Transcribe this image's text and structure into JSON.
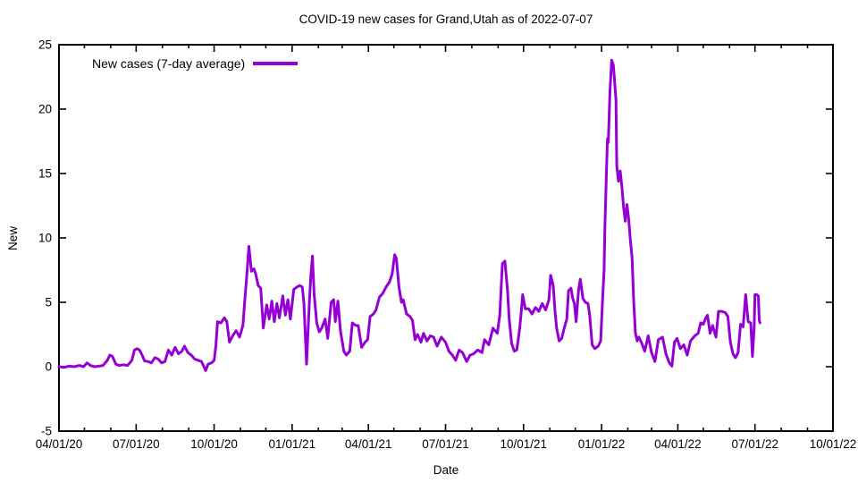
{
  "chart_data": {
    "type": "line",
    "title": "COVID-19 new cases for Grand,Utah as of 2022-07-07",
    "xlabel": "Date",
    "ylabel": "New",
    "ylim": [
      -5,
      25
    ],
    "x_range": [
      "2020-04-01",
      "2022-10-01"
    ],
    "grid": false,
    "legend_position": "top-left-inside",
    "y_ticks": [
      -5,
      0,
      5,
      10,
      15,
      20,
      25
    ],
    "x_major_ticks": [
      {
        "date": "2020-04-01",
        "label": "04/01/20"
      },
      {
        "date": "2020-07-01",
        "label": "07/01/20"
      },
      {
        "date": "2020-10-01",
        "label": "10/01/20"
      },
      {
        "date": "2021-01-01",
        "label": "01/01/21"
      },
      {
        "date": "2021-04-01",
        "label": "04/01/21"
      },
      {
        "date": "2021-07-01",
        "label": "07/01/21"
      },
      {
        "date": "2021-10-01",
        "label": "10/01/21"
      },
      {
        "date": "2022-01-01",
        "label": "01/01/22"
      },
      {
        "date": "2022-04-01",
        "label": "04/01/22"
      },
      {
        "date": "2022-07-01",
        "label": "07/01/22"
      },
      {
        "date": "2022-10-01",
        "label": "10/01/22"
      }
    ],
    "series": [
      {
        "name": "New cases (7-day average)",
        "color": "#9400d3",
        "points": [
          [
            "2020-04-01",
            0.0
          ],
          [
            "2020-04-07",
            -0.05
          ],
          [
            "2020-04-13",
            0.05
          ],
          [
            "2020-04-19",
            0.0
          ],
          [
            "2020-04-25",
            0.1
          ],
          [
            "2020-04-30",
            0.0
          ],
          [
            "2020-05-04",
            0.3
          ],
          [
            "2020-05-08",
            0.1
          ],
          [
            "2020-05-13",
            0.0
          ],
          [
            "2020-05-18",
            0.05
          ],
          [
            "2020-05-23",
            0.1
          ],
          [
            "2020-05-28",
            0.5
          ],
          [
            "2020-05-31",
            0.9
          ],
          [
            "2020-06-03",
            0.8
          ],
          [
            "2020-06-07",
            0.2
          ],
          [
            "2020-06-11",
            0.1
          ],
          [
            "2020-06-16",
            0.15
          ],
          [
            "2020-06-21",
            0.1
          ],
          [
            "2020-06-26",
            0.5
          ],
          [
            "2020-06-29",
            1.3
          ],
          [
            "2020-07-02",
            1.4
          ],
          [
            "2020-07-05",
            1.3
          ],
          [
            "2020-07-08",
            0.9
          ],
          [
            "2020-07-11",
            0.45
          ],
          [
            "2020-07-15",
            0.4
          ],
          [
            "2020-07-19",
            0.3
          ],
          [
            "2020-07-23",
            0.7
          ],
          [
            "2020-07-27",
            0.6
          ],
          [
            "2020-07-31",
            0.3
          ],
          [
            "2020-08-04",
            0.4
          ],
          [
            "2020-08-08",
            1.3
          ],
          [
            "2020-08-12",
            0.9
          ],
          [
            "2020-08-16",
            1.5
          ],
          [
            "2020-08-20",
            1.0
          ],
          [
            "2020-08-24",
            1.2
          ],
          [
            "2020-08-27",
            1.6
          ],
          [
            "2020-08-31",
            1.1
          ],
          [
            "2020-09-04",
            0.9
          ],
          [
            "2020-09-08",
            0.6
          ],
          [
            "2020-09-12",
            0.5
          ],
          [
            "2020-09-16",
            0.4
          ],
          [
            "2020-09-19",
            0.0
          ],
          [
            "2020-09-21",
            -0.3
          ],
          [
            "2020-09-24",
            0.2
          ],
          [
            "2020-09-28",
            0.3
          ],
          [
            "2020-10-01",
            0.5
          ],
          [
            "2020-10-03",
            1.6
          ],
          [
            "2020-10-05",
            3.5
          ],
          [
            "2020-10-09",
            3.4
          ],
          [
            "2020-10-13",
            3.8
          ],
          [
            "2020-10-16",
            3.5
          ],
          [
            "2020-10-19",
            1.9
          ],
          [
            "2020-10-23",
            2.4
          ],
          [
            "2020-10-27",
            2.8
          ],
          [
            "2020-10-31",
            2.3
          ],
          [
            "2020-11-04",
            3.2
          ],
          [
            "2020-11-06",
            5.0
          ],
          [
            "2020-11-08",
            6.6
          ],
          [
            "2020-11-11",
            9.35
          ],
          [
            "2020-11-14",
            7.4
          ],
          [
            "2020-11-17",
            7.6
          ],
          [
            "2020-11-19",
            7.2
          ],
          [
            "2020-11-22",
            6.3
          ],
          [
            "2020-11-25",
            6.1
          ],
          [
            "2020-11-28",
            3.0
          ],
          [
            "2020-12-02",
            4.8
          ],
          [
            "2020-12-05",
            3.7
          ],
          [
            "2020-12-08",
            5.1
          ],
          [
            "2020-12-11",
            3.5
          ],
          [
            "2020-12-14",
            4.9
          ],
          [
            "2020-12-17",
            3.8
          ],
          [
            "2020-12-21",
            5.5
          ],
          [
            "2020-12-24",
            4.0
          ],
          [
            "2020-12-27",
            5.2
          ],
          [
            "2020-12-30",
            3.7
          ],
          [
            "2021-01-03",
            6.0
          ],
          [
            "2021-01-07",
            6.2
          ],
          [
            "2021-01-10",
            6.3
          ],
          [
            "2021-01-13",
            6.2
          ],
          [
            "2021-01-15",
            4.9
          ],
          [
            "2021-01-18",
            0.2
          ],
          [
            "2021-01-21",
            4.5
          ],
          [
            "2021-01-23",
            7.0
          ],
          [
            "2021-01-25",
            8.6
          ],
          [
            "2021-01-27",
            5.6
          ],
          [
            "2021-01-30",
            3.4
          ],
          [
            "2021-02-02",
            2.7
          ],
          [
            "2021-02-05",
            3.0
          ],
          [
            "2021-02-09",
            3.7
          ],
          [
            "2021-02-12",
            2.2
          ],
          [
            "2021-02-16",
            5.0
          ],
          [
            "2021-02-19",
            5.2
          ],
          [
            "2021-02-21",
            3.5
          ],
          [
            "2021-02-24",
            5.1
          ],
          [
            "2021-02-27",
            2.8
          ],
          [
            "2021-03-03",
            1.2
          ],
          [
            "2021-03-06",
            0.9
          ],
          [
            "2021-03-10",
            1.2
          ],
          [
            "2021-03-13",
            3.4
          ],
          [
            "2021-03-17",
            3.2
          ],
          [
            "2021-03-20",
            3.2
          ],
          [
            "2021-03-24",
            1.5
          ],
          [
            "2021-03-28",
            1.9
          ],
          [
            "2021-03-31",
            2.1
          ],
          [
            "2021-04-03",
            3.9
          ],
          [
            "2021-04-07",
            4.1
          ],
          [
            "2021-04-10",
            4.4
          ],
          [
            "2021-04-14",
            5.4
          ],
          [
            "2021-04-18",
            5.7
          ],
          [
            "2021-04-22",
            6.2
          ],
          [
            "2021-04-26",
            6.6
          ],
          [
            "2021-04-29",
            7.2
          ],
          [
            "2021-05-02",
            8.7
          ],
          [
            "2021-05-04",
            8.4
          ],
          [
            "2021-05-07",
            6.2
          ],
          [
            "2021-05-10",
            5.0
          ],
          [
            "2021-05-12",
            5.2
          ],
          [
            "2021-05-16",
            4.1
          ],
          [
            "2021-05-20",
            3.9
          ],
          [
            "2021-05-23",
            3.6
          ],
          [
            "2021-05-26",
            2.1
          ],
          [
            "2021-05-29",
            2.5
          ],
          [
            "2021-06-02",
            1.9
          ],
          [
            "2021-06-05",
            2.6
          ],
          [
            "2021-06-09",
            2.0
          ],
          [
            "2021-06-13",
            2.4
          ],
          [
            "2021-06-17",
            2.3
          ],
          [
            "2021-06-21",
            1.6
          ],
          [
            "2021-06-26",
            2.3
          ],
          [
            "2021-07-01",
            1.9
          ],
          [
            "2021-07-05",
            1.2
          ],
          [
            "2021-07-09",
            0.9
          ],
          [
            "2021-07-13",
            0.5
          ],
          [
            "2021-07-17",
            1.3
          ],
          [
            "2021-07-21",
            1.1
          ],
          [
            "2021-07-26",
            0.4
          ],
          [
            "2021-07-30",
            0.9
          ],
          [
            "2021-08-03",
            1.0
          ],
          [
            "2021-08-08",
            1.3
          ],
          [
            "2021-08-13",
            1.1
          ],
          [
            "2021-08-16",
            2.1
          ],
          [
            "2021-08-21",
            1.7
          ],
          [
            "2021-08-26",
            3.0
          ],
          [
            "2021-08-31",
            2.6
          ],
          [
            "2021-09-03",
            4.0
          ],
          [
            "2021-09-06",
            8.0
          ],
          [
            "2021-09-09",
            8.2
          ],
          [
            "2021-09-12",
            6.0
          ],
          [
            "2021-09-14",
            3.7
          ],
          [
            "2021-09-17",
            1.8
          ],
          [
            "2021-09-20",
            1.2
          ],
          [
            "2021-09-23",
            1.3
          ],
          [
            "2021-09-26",
            2.7
          ],
          [
            "2021-09-28",
            4.0
          ],
          [
            "2021-09-30",
            5.6
          ],
          [
            "2021-10-03",
            4.5
          ],
          [
            "2021-10-07",
            4.5
          ],
          [
            "2021-10-11",
            4.1
          ],
          [
            "2021-10-15",
            4.6
          ],
          [
            "2021-10-19",
            4.3
          ],
          [
            "2021-10-23",
            4.9
          ],
          [
            "2021-10-27",
            4.4
          ],
          [
            "2021-10-31",
            5.2
          ],
          [
            "2021-11-02",
            7.1
          ],
          [
            "2021-11-05",
            6.3
          ],
          [
            "2021-11-07",
            4.4
          ],
          [
            "2021-11-09",
            3.0
          ],
          [
            "2021-11-12",
            2.0
          ],
          [
            "2021-11-15",
            2.2
          ],
          [
            "2021-11-18",
            3.0
          ],
          [
            "2021-11-21",
            3.7
          ],
          [
            "2021-11-23",
            5.9
          ],
          [
            "2021-11-26",
            6.1
          ],
          [
            "2021-11-28",
            5.3
          ],
          [
            "2021-11-30",
            4.9
          ],
          [
            "2021-12-02",
            3.5
          ],
          [
            "2021-12-05",
            6.0
          ],
          [
            "2021-12-07",
            6.8
          ],
          [
            "2021-12-10",
            5.3
          ],
          [
            "2021-12-13",
            5.0
          ],
          [
            "2021-12-16",
            4.9
          ],
          [
            "2021-12-18",
            4.0
          ],
          [
            "2021-12-21",
            1.7
          ],
          [
            "2021-12-24",
            1.4
          ],
          [
            "2021-12-28",
            1.6
          ],
          [
            "2021-12-31",
            2.0
          ],
          [
            "2022-01-02",
            4.9
          ],
          [
            "2022-01-04",
            7.5
          ],
          [
            "2022-01-05",
            10.8
          ],
          [
            "2022-01-07",
            15.5
          ],
          [
            "2022-01-08",
            17.7
          ],
          [
            "2022-01-09",
            17.4
          ],
          [
            "2022-01-11",
            21.4
          ],
          [
            "2022-01-13",
            23.8
          ],
          [
            "2022-01-15",
            23.4
          ],
          [
            "2022-01-16",
            22.5
          ],
          [
            "2022-01-18",
            20.7
          ],
          [
            "2022-01-19",
            15.6
          ],
          [
            "2022-01-21",
            14.4
          ],
          [
            "2022-01-23",
            15.2
          ],
          [
            "2022-01-25",
            14.0
          ],
          [
            "2022-01-27",
            12.4
          ],
          [
            "2022-01-29",
            11.3
          ],
          [
            "2022-01-31",
            12.6
          ],
          [
            "2022-02-02",
            11.5
          ],
          [
            "2022-02-04",
            9.8
          ],
          [
            "2022-02-06",
            8.5
          ],
          [
            "2022-02-08",
            5.0
          ],
          [
            "2022-02-10",
            2.6
          ],
          [
            "2022-02-12",
            2.0
          ],
          [
            "2022-02-14",
            2.3
          ],
          [
            "2022-02-17",
            1.9
          ],
          [
            "2022-02-21",
            1.2
          ],
          [
            "2022-02-25",
            2.4
          ],
          [
            "2022-03-01",
            1.1
          ],
          [
            "2022-03-05",
            0.4
          ],
          [
            "2022-03-09",
            2.1
          ],
          [
            "2022-03-14",
            2.3
          ],
          [
            "2022-03-18",
            1.0
          ],
          [
            "2022-03-22",
            0.3
          ],
          [
            "2022-03-25",
            0.05
          ],
          [
            "2022-03-28",
            1.9
          ],
          [
            "2022-03-31",
            2.2
          ],
          [
            "2022-04-04",
            1.4
          ],
          [
            "2022-04-08",
            1.7
          ],
          [
            "2022-04-12",
            0.9
          ],
          [
            "2022-04-16",
            2.0
          ],
          [
            "2022-04-21",
            2.4
          ],
          [
            "2022-04-25",
            2.6
          ],
          [
            "2022-04-28",
            3.4
          ],
          [
            "2022-05-01",
            3.3
          ],
          [
            "2022-05-04",
            3.8
          ],
          [
            "2022-05-06",
            4.0
          ],
          [
            "2022-05-09",
            2.6
          ],
          [
            "2022-05-12",
            3.2
          ],
          [
            "2022-05-16",
            2.3
          ],
          [
            "2022-05-19",
            4.3
          ],
          [
            "2022-05-23",
            4.3
          ],
          [
            "2022-05-27",
            4.2
          ],
          [
            "2022-05-30",
            3.9
          ],
          [
            "2022-06-02",
            1.9
          ],
          [
            "2022-06-05",
            1.0
          ],
          [
            "2022-06-08",
            0.7
          ],
          [
            "2022-06-11",
            1.1
          ],
          [
            "2022-06-14",
            3.3
          ],
          [
            "2022-06-17",
            3.1
          ],
          [
            "2022-06-20",
            5.6
          ],
          [
            "2022-06-23",
            3.5
          ],
          [
            "2022-06-26",
            3.4
          ],
          [
            "2022-06-28",
            0.8
          ],
          [
            "2022-06-30",
            3.0
          ],
          [
            "2022-07-01",
            5.6
          ],
          [
            "2022-07-03",
            5.6
          ],
          [
            "2022-07-05",
            5.5
          ],
          [
            "2022-07-06",
            3.6
          ],
          [
            "2022-07-07",
            3.4
          ]
        ]
      }
    ],
    "colors": {
      "series": "#9400d3",
      "axis": "#000000",
      "background": "#ffffff"
    }
  }
}
